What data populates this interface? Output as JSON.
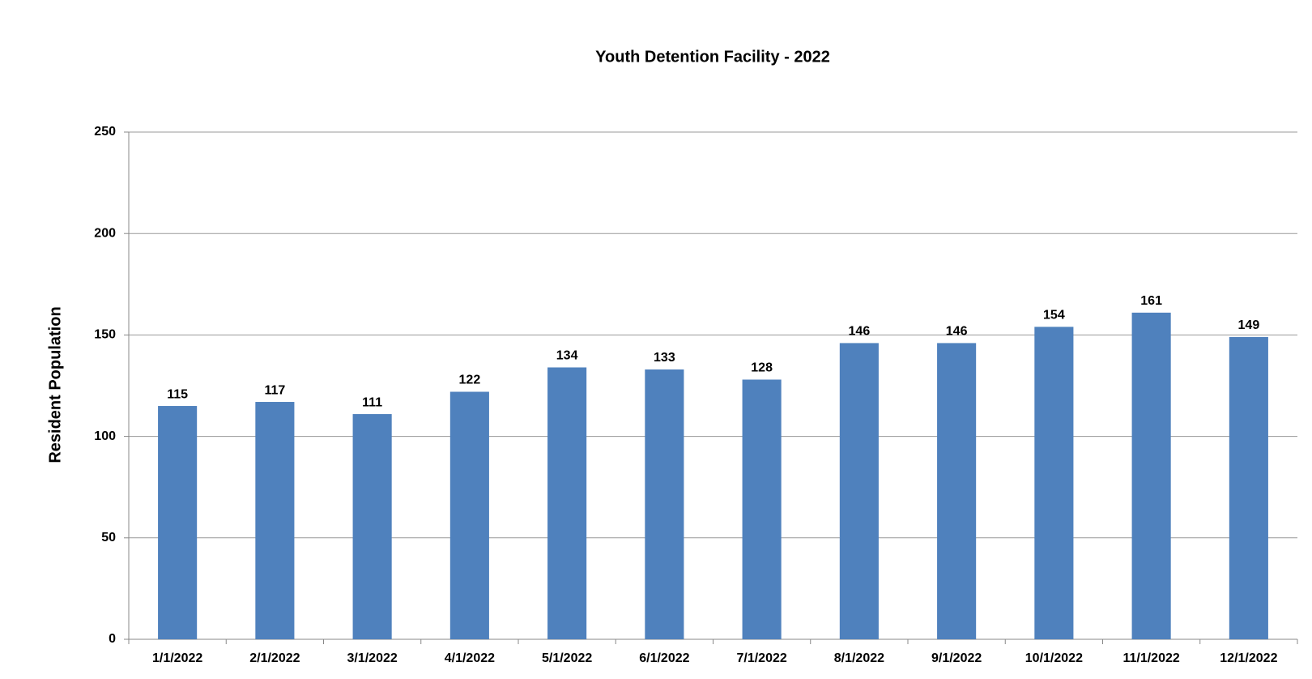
{
  "chart_data": {
    "type": "bar",
    "title": "Youth Detention Facility - 2022",
    "y_axis_label": "Resident Population",
    "categories": [
      "1/1/2022",
      "2/1/2022",
      "3/1/2022",
      "4/1/2022",
      "5/1/2022",
      "6/1/2022",
      "7/1/2022",
      "8/1/2022",
      "9/1/2022",
      "10/1/2022",
      "11/1/2022",
      "12/1/2022"
    ],
    "values": [
      115,
      117,
      111,
      122,
      134,
      133,
      128,
      146,
      146,
      154,
      161,
      149
    ],
    "color": "#4f81bd",
    "ylim": [
      0,
      250
    ],
    "yticks": [
      0,
      50,
      100,
      150,
      200,
      250
    ],
    "grid": true
  }
}
